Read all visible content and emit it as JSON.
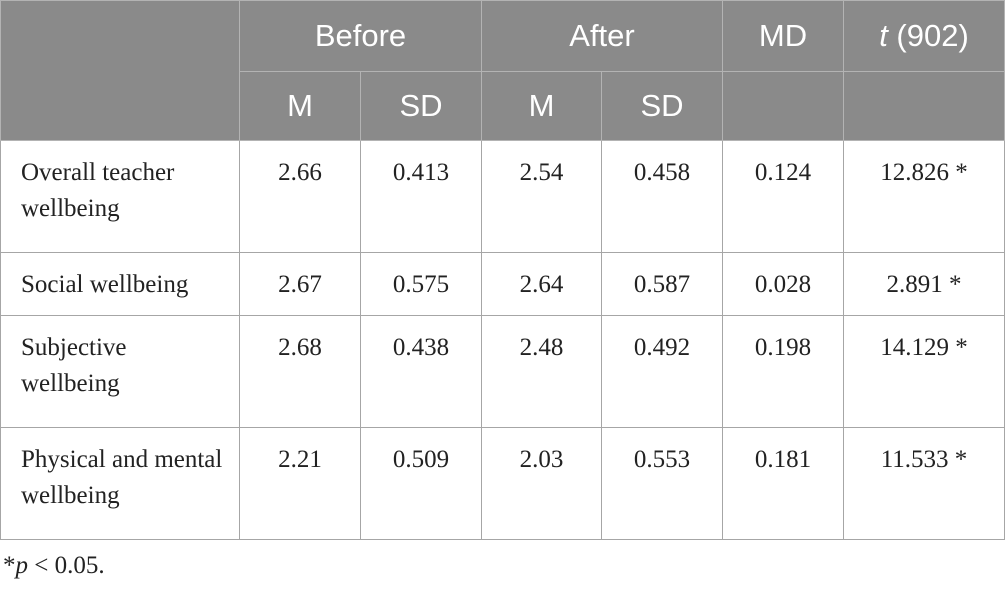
{
  "table": {
    "header": {
      "group_before": "Before",
      "group_after": "After",
      "md": "MD",
      "t_italic": "t",
      "t_rest": " (902)",
      "m": "M",
      "sd": "SD"
    },
    "rows": [
      {
        "label": "Overall teacher wellbeing",
        "before_m": "2.66",
        "before_sd": "0.413",
        "after_m": "2.54",
        "after_sd": "0.458",
        "md": "0.124",
        "t": "12.826 *"
      },
      {
        "label": "Social wellbeing",
        "before_m": "2.67",
        "before_sd": "0.575",
        "after_m": "2.64",
        "after_sd": "0.587",
        "md": "0.028",
        "t": "2.891 *"
      },
      {
        "label": "Subjective wellbeing",
        "before_m": "2.68",
        "before_sd": "0.438",
        "after_m": "2.48",
        "after_sd": "0.492",
        "md": "0.198",
        "t": "14.129 *"
      },
      {
        "label": "Physical and mental wellbeing",
        "before_m": "2.21",
        "before_sd": "0.509",
        "after_m": "2.03",
        "after_sd": "0.553",
        "md": "0.181",
        "t": "11.533 *"
      }
    ]
  },
  "footnote": {
    "star": "*",
    "p": "p",
    "rest": " < 0.05."
  },
  "colors": {
    "header_bg": "#8a8a8a",
    "header_text": "#ffffff",
    "grid": "#a6a6a6",
    "body_text": "#222222"
  }
}
